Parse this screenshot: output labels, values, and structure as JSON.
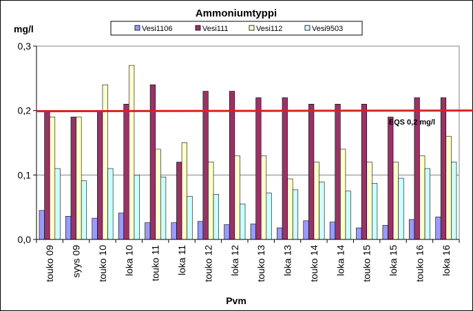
{
  "chart_data": {
    "type": "bar",
    "title": "Ammoniumtyppi",
    "ylabel": "mg/l",
    "xlabel": "Pvm",
    "ylim": [
      0,
      0.3
    ],
    "yticks": [
      0,
      0.1,
      0.2,
      0.3
    ],
    "ytick_labels": [
      "0,0",
      "0,1",
      "0,2",
      "0,3"
    ],
    "grid": true,
    "legend_position": "top",
    "categories": [
      "touko 09",
      "syys 09",
      "touko 10",
      "loka 10",
      "touko 11",
      "loka 11",
      "touko 12",
      "loka 12",
      "touko 13",
      "loka 13",
      "touko 14",
      "loka 14",
      "touko 15",
      "loka 15",
      "touko 16",
      "loka 16"
    ],
    "series": [
      {
        "name": "Vesi1106",
        "color": "#9999ff",
        "values": [
          0.045,
          0.036,
          0.033,
          0.041,
          0.026,
          0.026,
          0.028,
          0.023,
          0.024,
          0.018,
          0.029,
          0.027,
          0.018,
          0.022,
          0.031,
          0.035
        ]
      },
      {
        "name": "Vesi111",
        "color": "#993366",
        "values": [
          0.2,
          0.19,
          0.2,
          0.21,
          0.24,
          0.12,
          0.23,
          0.23,
          0.22,
          0.22,
          0.21,
          0.21,
          0.21,
          0.19,
          0.22,
          0.22
        ]
      },
      {
        "name": "Vesi112",
        "color": "#ffffcc",
        "values": [
          0.19,
          0.19,
          0.24,
          0.27,
          0.14,
          0.15,
          0.12,
          0.13,
          0.13,
          0.094,
          0.12,
          0.14,
          0.12,
          0.12,
          0.13,
          0.16
        ]
      },
      {
        "name": "Vesi9503",
        "color": "#ccffff",
        "values": [
          0.11,
          0.091,
          0.11,
          0.1,
          0.097,
          0.067,
          0.07,
          0.055,
          0.072,
          0.077,
          0.089,
          0.075,
          0.087,
          0.095,
          0.11,
          0.12
        ]
      }
    ],
    "reference_line": {
      "label": "EQS 0,2 mg/l",
      "y_start": 0.199,
      "y_end": 0.2,
      "color": "#dd2020"
    }
  }
}
